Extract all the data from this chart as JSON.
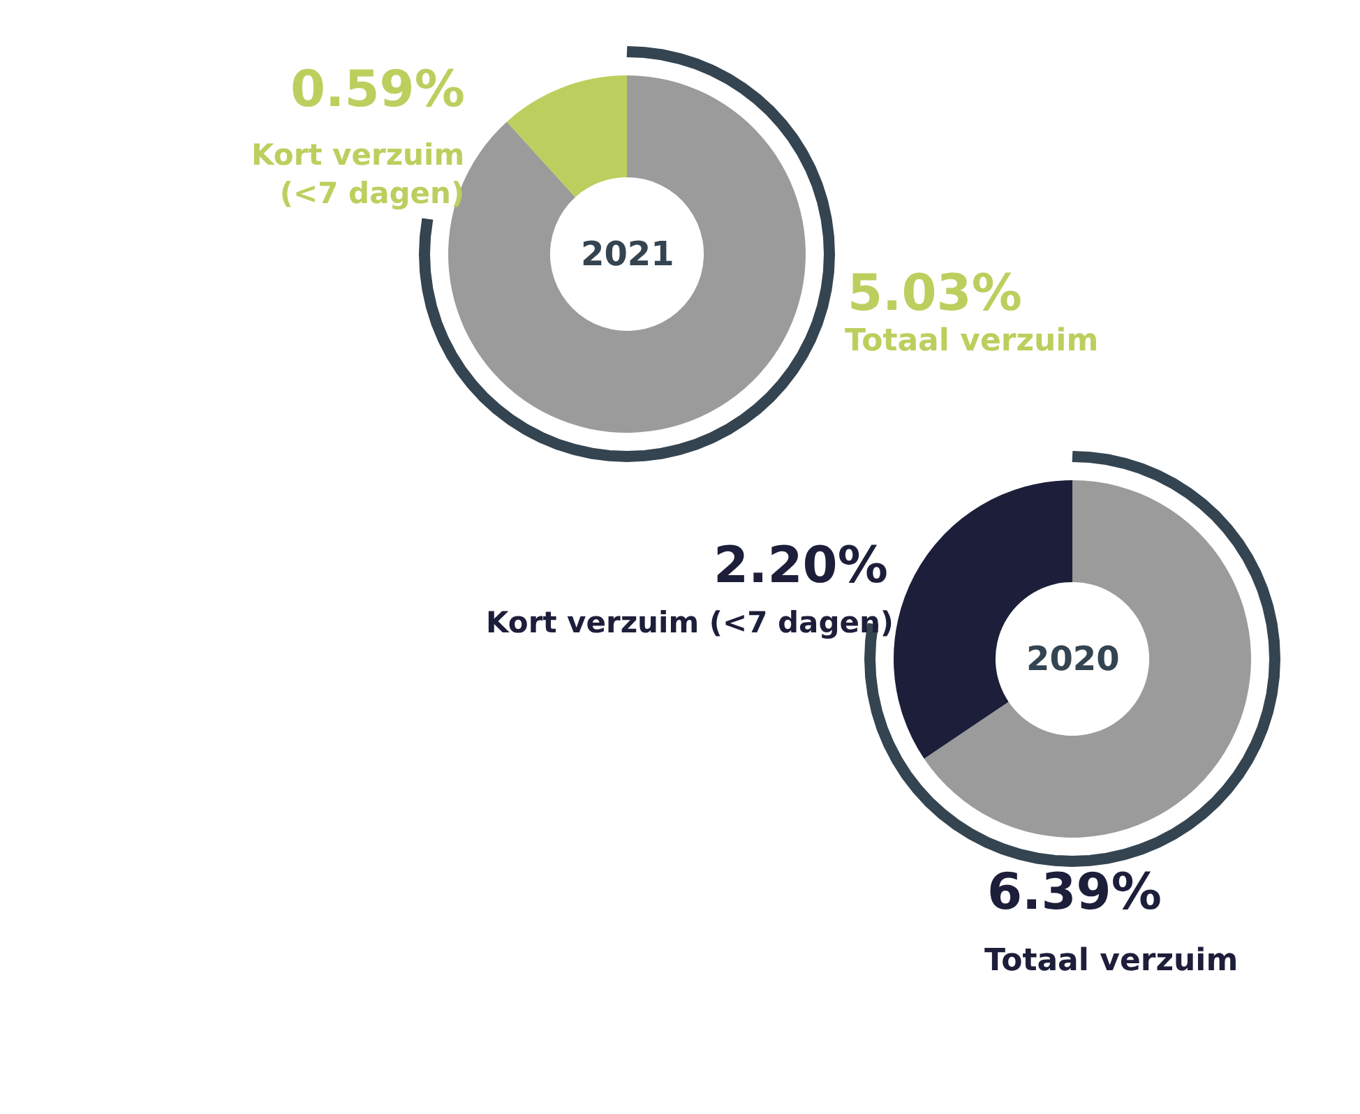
{
  "chart_data": [
    {
      "type": "donut",
      "title": "2021",
      "categories": [
        null,
        "Kort verzuim\n(<7 dagen)"
      ],
      "values": [
        4.44,
        0.59
      ],
      "colors": [
        "#9a9b9a",
        "#bccf5e"
      ],
      "value_labels": [
        null,
        "0.59%"
      ],
      "annotations": [
        "5.03%",
        "Totaal verzuim"
      ]
    },
    {
      "type": "donut",
      "title": "2020",
      "categories": [
        null,
        "Kort verzuim (<7 dagen)"
      ],
      "values": [
        4.19,
        2.2
      ],
      "colors": [
        "#9a9b9a",
        "#1c1e3a"
      ],
      "value_labels": [
        null,
        "2.20%"
      ],
      "annotations": [
        "6.39%",
        "Totaal verzuim"
      ]
    }
  ]
}
